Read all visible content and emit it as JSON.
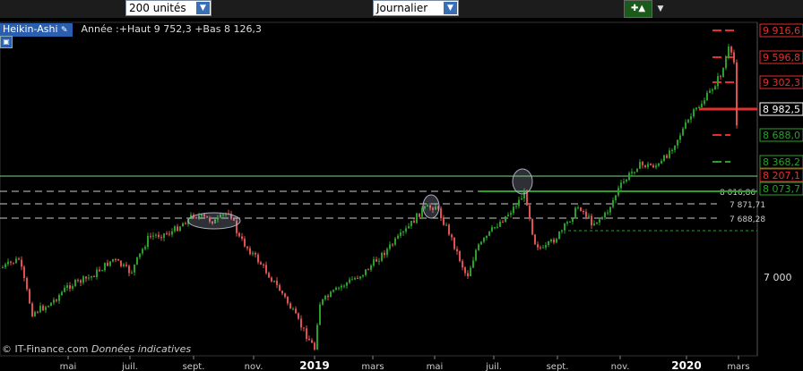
{
  "toolbar": {
    "units_select": "200 unités",
    "period_select": "Journalier",
    "tool_icon": "chart-tool-icon"
  },
  "header": {
    "chart_type_label": "Heikin-Ashi",
    "info_text": "Année :+Haut 9 752,3 +Bas 8 126,3"
  },
  "copyright": {
    "brand": "© IT-Finance.com",
    "note": "Données indicatives"
  },
  "chart_data": {
    "type": "candlestick",
    "y_tick_labels": [
      "7 000"
    ],
    "x_tick_labels": [
      "mai",
      "juil.",
      "sept.",
      "nov.",
      "2019",
      "mars",
      "mai",
      "juil.",
      "sept.",
      "nov.",
      "2020",
      "mars"
    ],
    "price_levels": [
      {
        "value": "9 916,6",
        "color": "#e03030"
      },
      {
        "value": "9 596,8",
        "color": "#e03030"
      },
      {
        "value": "9 302,3",
        "color": "#e03030"
      },
      {
        "value": "8 982,5",
        "color": "#ffffff"
      },
      {
        "value": "8 688,0",
        "color": "#2aa02a"
      },
      {
        "value": "8 368,2",
        "color": "#2aa02a"
      },
      {
        "value": "8 207,1",
        "color": "#e03030"
      },
      {
        "value": "8 073,7",
        "color": "#2aa02a"
      }
    ],
    "dashed_levels": [
      "8 016,86",
      "7 871,71",
      "7 688,28"
    ],
    "colors": {
      "up": "#2aa02a",
      "down": "#e05050",
      "horizontal": "#7fd87f"
    }
  }
}
